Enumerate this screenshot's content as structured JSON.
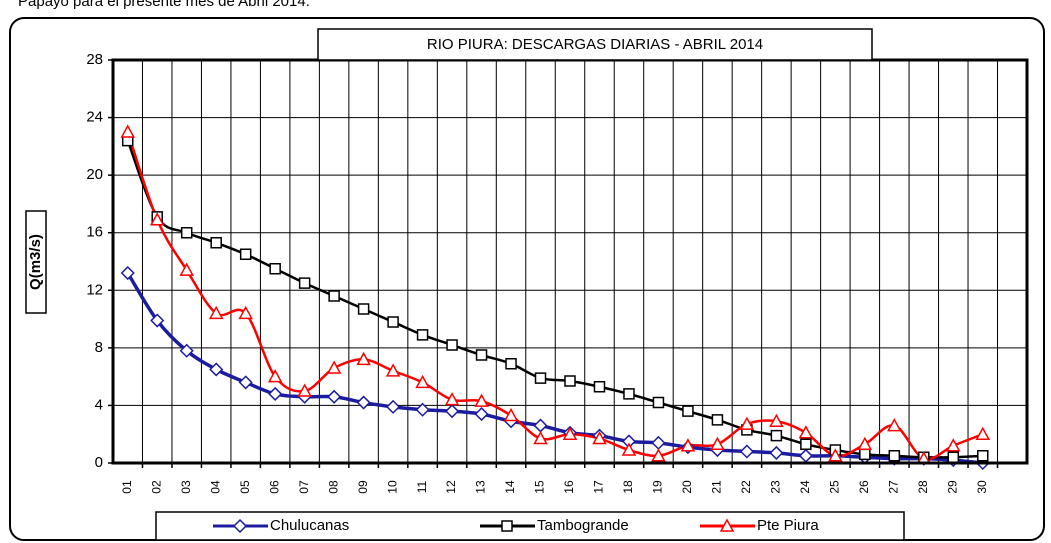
{
  "caption": "Papayo para el presente mes de Abril 2014.",
  "chart_data": {
    "type": "line",
    "title": "RIO PIURA: DESCARGAS DIARIAS - ABRIL 2014",
    "ylabel": "Q(m3/s)",
    "categories": [
      "01",
      "02",
      "03",
      "04",
      "05",
      "06",
      "07",
      "08",
      "09",
      "10",
      "11",
      "12",
      "13",
      "14",
      "15",
      "16",
      "17",
      "18",
      "19",
      "20",
      "21",
      "22",
      "23",
      "24",
      "25",
      "26",
      "27",
      "28",
      "29",
      "30",
      null
    ],
    "series": [
      {
        "name": "Chulucanas",
        "color": "#1c1ca0",
        "marker": "diamond",
        "values": [
          13.2,
          9.9,
          7.8,
          6.5,
          5.6,
          4.8,
          4.6,
          4.6,
          4.2,
          3.9,
          3.7,
          3.6,
          3.4,
          2.9,
          2.6,
          2.1,
          1.9,
          1.5,
          1.4,
          1.1,
          0.9,
          0.8,
          0.7,
          0.5,
          0.5,
          0.4,
          0.3,
          0.3,
          0.2,
          0.0,
          null
        ]
      },
      {
        "name": "Tambogrande",
        "color": "#000000",
        "marker": "square",
        "values": [
          22.4,
          17.1,
          16.0,
          15.3,
          14.5,
          13.5,
          12.5,
          11.6,
          10.7,
          9.8,
          8.9,
          8.2,
          7.5,
          6.9,
          5.9,
          5.7,
          5.3,
          4.8,
          4.2,
          3.6,
          3.0,
          2.3,
          1.9,
          1.3,
          0.9,
          0.6,
          0.5,
          0.4,
          0.4,
          0.5,
          null
        ]
      },
      {
        "name": "Pte Piura",
        "color": "#ff0000",
        "marker": "triangle",
        "values": [
          23.0,
          16.9,
          13.4,
          10.4,
          10.4,
          6.0,
          5.0,
          6.6,
          7.2,
          6.4,
          5.6,
          4.4,
          4.3,
          3.3,
          1.7,
          2.0,
          1.7,
          0.9,
          0.5,
          1.2,
          1.3,
          2.7,
          2.9,
          2.1,
          0.5,
          1.3,
          2.6,
          0.3,
          1.2,
          2.0,
          null
        ]
      }
    ],
    "ylim": [
      0,
      28
    ],
    "yticks": [
      0,
      4,
      8,
      12,
      16,
      20,
      24,
      28
    ],
    "grid": true,
    "legend": "bottom"
  }
}
